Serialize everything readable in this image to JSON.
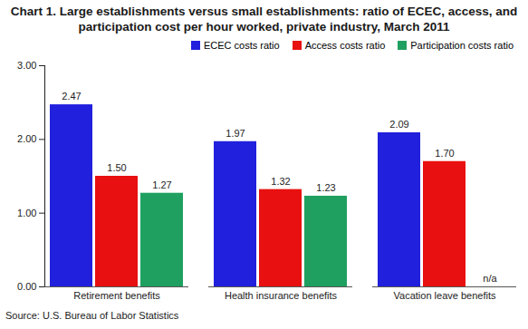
{
  "chart_data": {
    "type": "bar",
    "title": "Chart 1. Large establishments versus small establishments: ratio of ECEC, access, and participation cost per hour worked, private industry, March 2011",
    "caption": "Source: U.S. Bureau of Labor Statistics",
    "categories": [
      "Retirement benefits",
      "Health insurance benefits",
      "Vacation leave benefits"
    ],
    "series": [
      {
        "name": "ECEC costs ratio",
        "color": "#2020dd",
        "values": [
          2.47,
          1.97,
          2.09
        ],
        "value_labels": [
          "2.47",
          "1.97",
          "2.09"
        ]
      },
      {
        "name": "Access costs ratio",
        "color": "#e81010",
        "values": [
          1.5,
          1.32,
          1.7
        ],
        "value_labels": [
          "1.50",
          "1.32",
          "1.70"
        ]
      },
      {
        "name": "Participation costs ratio",
        "color": "#1fa060",
        "values": [
          1.27,
          1.23,
          null
        ],
        "value_labels": [
          "1.27",
          "1.23",
          "n/a"
        ]
      }
    ],
    "ylim": [
      0,
      3
    ],
    "yticks": [
      {
        "value": 0,
        "label": "0.00"
      },
      {
        "value": 1,
        "label": "1.00"
      },
      {
        "value": 2,
        "label": "2.00"
      },
      {
        "value": 3,
        "label": "3.00"
      }
    ],
    "grid": false,
    "legend": "top",
    "data_labels": true
  }
}
